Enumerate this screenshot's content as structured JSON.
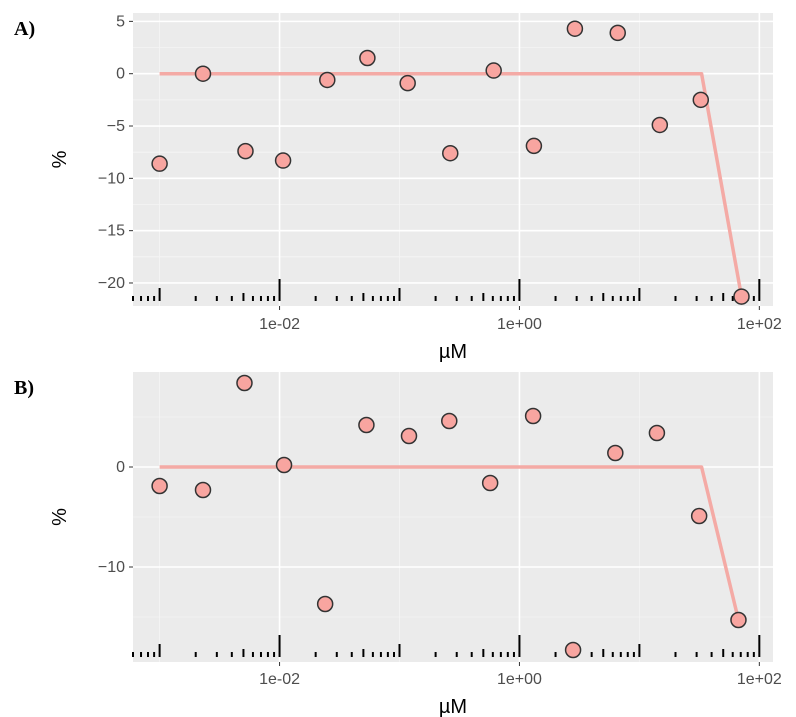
{
  "chart_data": [
    {
      "panel_label": "A)",
      "type": "scatter",
      "x_scale": "log10",
      "xlabel": "µM",
      "ylabel": "%",
      "xlim": [
        0.0006,
        130
      ],
      "ylim": [
        -22.2,
        5.8
      ],
      "x_ticks": [
        0.01,
        1,
        100
      ],
      "x_tick_labels": [
        "1e-02",
        "1e+00",
        "1e+02"
      ],
      "y_ticks": [
        5,
        0,
        -5,
        -10,
        -15,
        -20
      ],
      "y_tick_labels": [
        "5",
        "0",
        "−5",
        "−10",
        "−15",
        "−20"
      ],
      "grid": true,
      "rug": true,
      "points": [
        {
          "x": 0.001,
          "y": -8.6
        },
        {
          "x": 0.0023,
          "y": 0.0
        },
        {
          "x": 0.0052,
          "y": -7.4
        },
        {
          "x": 0.0107,
          "y": -8.3
        },
        {
          "x": 0.025,
          "y": -0.6
        },
        {
          "x": 0.054,
          "y": 1.5
        },
        {
          "x": 0.117,
          "y": -0.9
        },
        {
          "x": 0.265,
          "y": -7.6
        },
        {
          "x": 0.61,
          "y": 0.3
        },
        {
          "x": 1.32,
          "y": -6.9
        },
        {
          "x": 2.9,
          "y": 4.3
        },
        {
          "x": 6.6,
          "y": 3.9
        },
        {
          "x": 14.8,
          "y": -4.9
        },
        {
          "x": 32.5,
          "y": -2.5
        },
        {
          "x": 71,
          "y": -21.3
        }
      ],
      "fit_line": [
        {
          "x": 0.001,
          "y": 0
        },
        {
          "x": 33,
          "y": 0
        },
        {
          "x": 71,
          "y": -21.3
        }
      ]
    },
    {
      "panel_label": "B)",
      "type": "scatter",
      "x_scale": "log10",
      "xlabel": "µM",
      "ylabel": "%",
      "xlim": [
        0.0006,
        130
      ],
      "ylim": [
        -19.5,
        9.5
      ],
      "x_ticks": [
        0.01,
        1,
        100
      ],
      "x_tick_labels": [
        "1e-02",
        "1e+00",
        "1e+02"
      ],
      "y_ticks": [
        0,
        -10
      ],
      "y_tick_labels": [
        "0",
        "−10"
      ],
      "grid": true,
      "rug": true,
      "points": [
        {
          "x": 0.001,
          "y": -1.9
        },
        {
          "x": 0.0023,
          "y": -2.3
        },
        {
          "x": 0.0051,
          "y": 8.4
        },
        {
          "x": 0.0109,
          "y": 0.2
        },
        {
          "x": 0.024,
          "y": -13.7
        },
        {
          "x": 0.053,
          "y": 4.2
        },
        {
          "x": 0.12,
          "y": 3.1
        },
        {
          "x": 0.26,
          "y": 4.6
        },
        {
          "x": 0.57,
          "y": -1.6
        },
        {
          "x": 1.3,
          "y": 5.1
        },
        {
          "x": 2.8,
          "y": -18.3
        },
        {
          "x": 6.3,
          "y": 1.4
        },
        {
          "x": 14.0,
          "y": 3.4
        },
        {
          "x": 31.5,
          "y": -4.9
        },
        {
          "x": 67,
          "y": -15.3
        }
      ],
      "fit_line": [
        {
          "x": 0.001,
          "y": 0
        },
        {
          "x": 33,
          "y": 0
        },
        {
          "x": 67,
          "y": -15.3
        }
      ]
    }
  ],
  "colors": {
    "panel_bg": "#ebebeb",
    "grid_major": "#ffffff",
    "grid_minor": "#f5f5f5",
    "point_fill": "#f8a5a0",
    "point_stroke": "#333333",
    "line": "#f4aaa5",
    "rug": "#000000",
    "tick_text": "#4d4d4d"
  }
}
